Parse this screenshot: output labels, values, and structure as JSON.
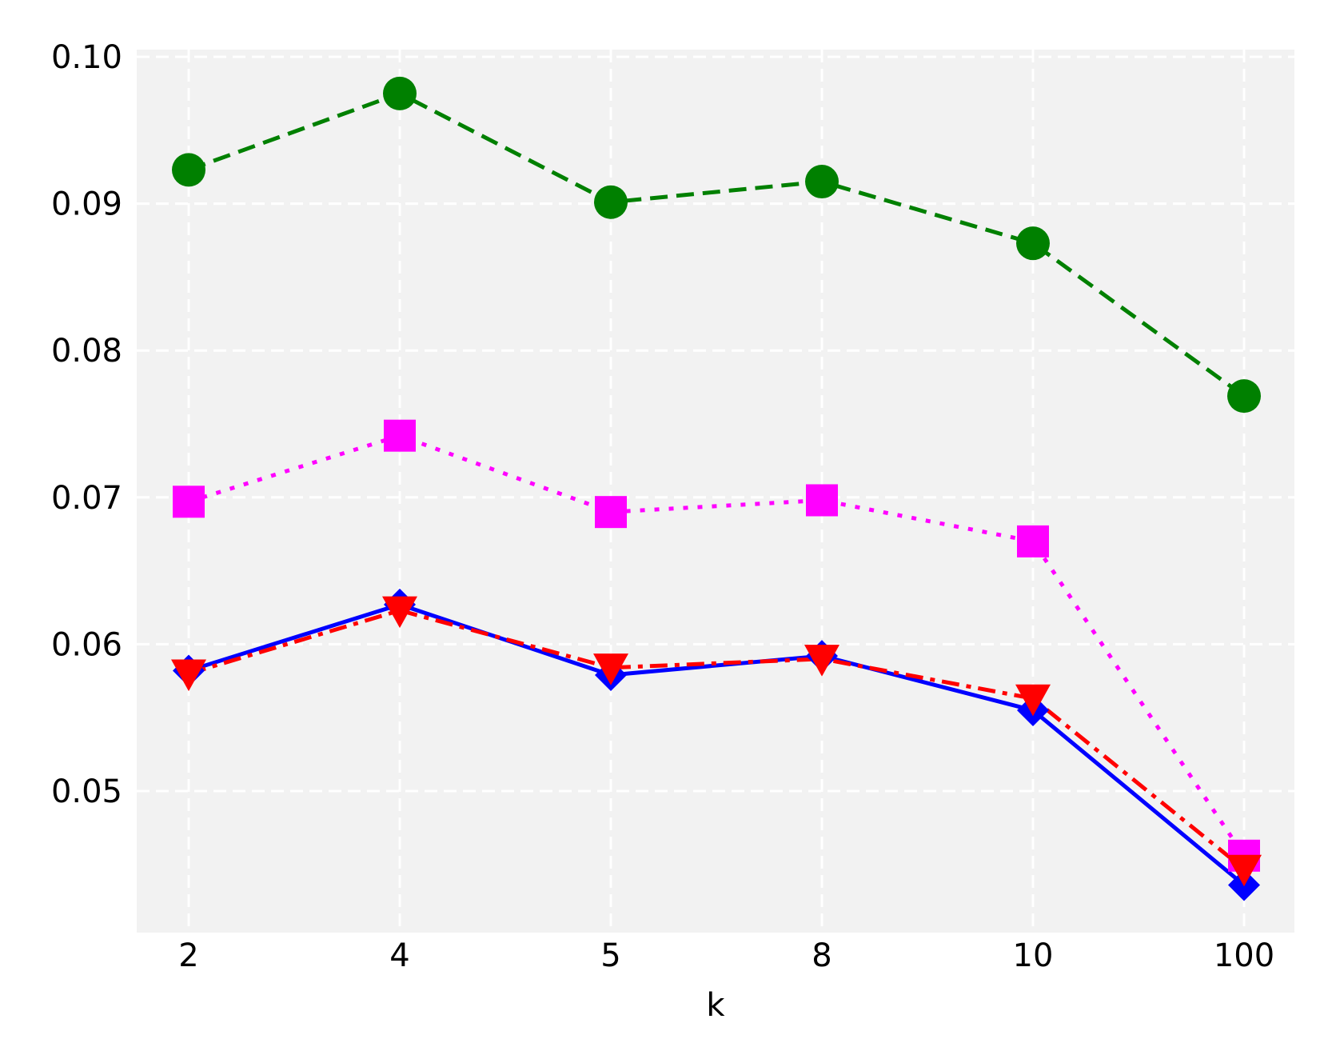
{
  "chart_data": {
    "type": "line",
    "title": "",
    "xlabel": "k",
    "ylabel": "",
    "categories": [
      "2",
      "4",
      "5",
      "8",
      "10",
      "100"
    ],
    "y_ticks": [
      0.05,
      0.06,
      0.07,
      0.08,
      0.09,
      0.1
    ],
    "y_tick_labels": [
      "0.05",
      "0.06",
      "0.07",
      "0.08",
      "0.09",
      "0.10"
    ],
    "ylim": [
      0.041,
      0.1
    ],
    "grid": true,
    "legend": "none",
    "background": "#f2f2f2",
    "series": [
      {
        "color": "#008000",
        "line_style": "dashed",
        "marker": "circle",
        "values": [
          0.0923,
          0.0975,
          0.0901,
          0.0915,
          0.0873,
          0.0769
        ]
      },
      {
        "color": "#ff00ff",
        "line_style": "dotted",
        "marker": "square",
        "values": [
          0.0697,
          0.0742,
          0.069,
          0.0698,
          0.067,
          0.0456
        ]
      },
      {
        "color": "#0000ff",
        "line_style": "solid",
        "marker": "diamond",
        "values": [
          0.0582,
          0.0627,
          0.0579,
          0.0592,
          0.0555,
          0.0436
        ]
      },
      {
        "color": "#ff0000",
        "line_style": "dashdot",
        "marker": "triangle-down",
        "values": [
          0.058,
          0.0623,
          0.0584,
          0.059,
          0.0563,
          0.0447
        ]
      }
    ]
  }
}
